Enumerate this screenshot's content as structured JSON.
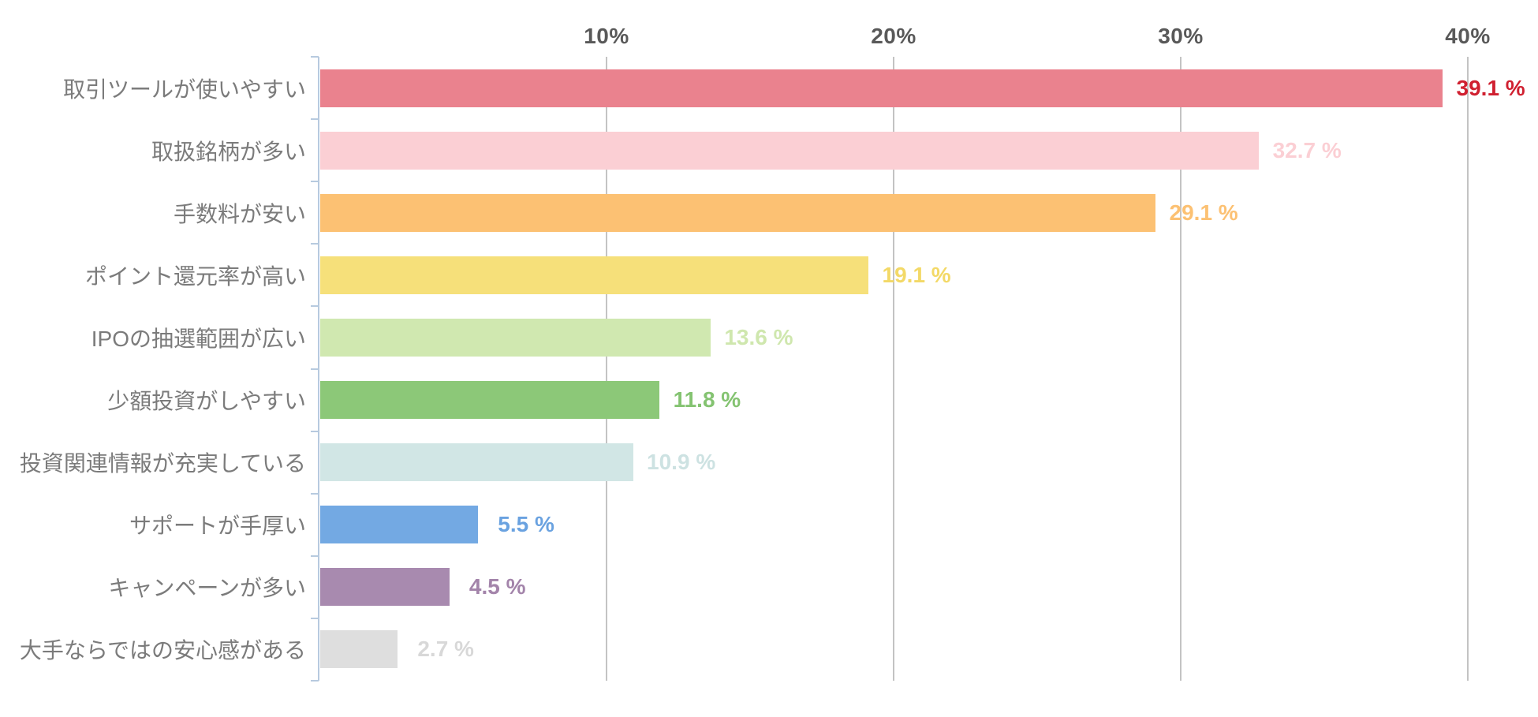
{
  "chart_data": {
    "type": "bar",
    "orientation": "horizontal",
    "title": "",
    "xlabel": "",
    "ylabel": "",
    "categories": [
      "取引ツールが使いやすい",
      "取扱銘柄が多い",
      "手数料が安い",
      "ポイント還元率が高い",
      "IPOの抽選範囲が広い",
      "少額投資がしやすい",
      "投資関連情報が充実している",
      "サポートが手厚い",
      "キャンペーンが多い",
      "大手ならではの安心感がある"
    ],
    "values": [
      39.1,
      32.7,
      29.1,
      19.1,
      13.6,
      11.8,
      10.9,
      5.5,
      4.5,
      2.7
    ],
    "value_labels": [
      "39.1 %",
      "32.7 %",
      "29.1 %",
      "19.1 %",
      "13.6 %",
      "11.8 %",
      "10.9 %",
      "5.5 %",
      "4.5 %",
      "2.7 %"
    ],
    "bar_colors": [
      "#ea828e",
      "#fbcfd4",
      "#fcc173",
      "#f6e07a",
      "#d0e8b0",
      "#8cc878",
      "#d1e6e5",
      "#73a9e3",
      "#a88aaf",
      "#dedede"
    ],
    "value_label_colors": [
      "#d02030",
      "#fbcfd4",
      "#fcc173",
      "#f3d967",
      "#cfe7ae",
      "#84c371",
      "#cde2e2",
      "#6aa2e0",
      "#a384aa",
      "#d8d8d8"
    ],
    "x_axis": {
      "ticks": [
        10,
        20,
        30,
        40
      ],
      "tick_labels": [
        "10%",
        "20%",
        "30%",
        "40%"
      ],
      "max": 40.25,
      "grid": true
    },
    "grid_color": "#c3c3c3",
    "axis_color": "#b7cadf",
    "tick_label_color": "#595959",
    "category_label_color": "#7b7b7b",
    "background": "#ffffff"
  }
}
